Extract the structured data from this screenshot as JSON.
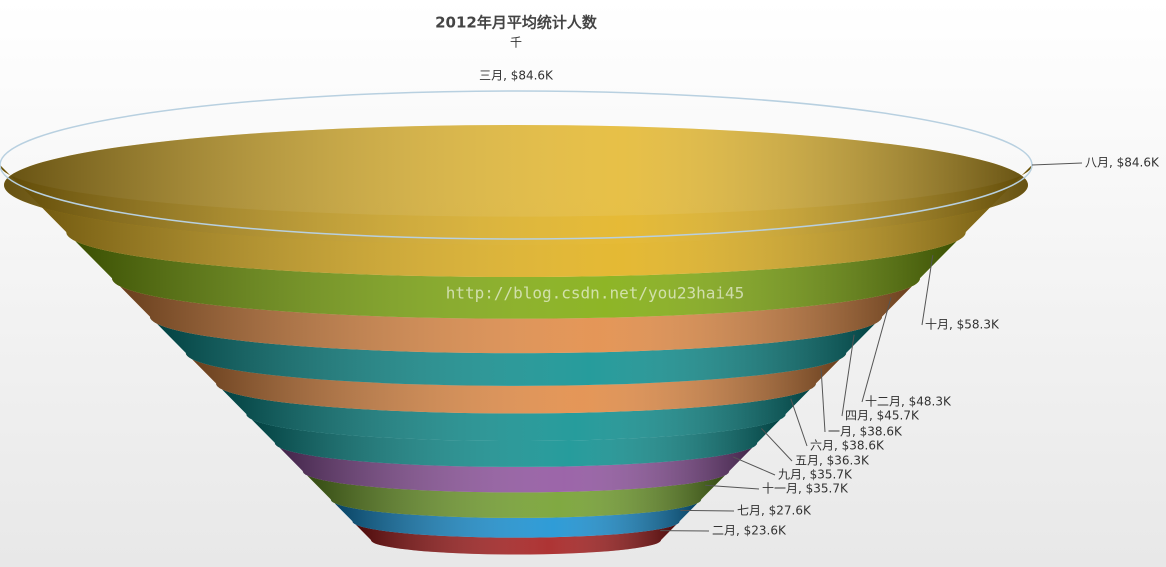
{
  "chart_data": {
    "type": "funnel",
    "title": "2012年月平均统计人数",
    "subtitle": "千",
    "watermark": "http://blog.csdn.net/you23hai45",
    "values": [
      84.6,
      84.6,
      58.3,
      48.3,
      45.7,
      38.6,
      38.6,
      36.3,
      35.7,
      35.7,
      27.6,
      23.6
    ],
    "value_labels": [
      "三月, $84.6K",
      "八月, $84.6K",
      "十月, $58.3K",
      "十二月, $48.3K",
      "四月, $45.7K",
      "一月, $38.6K",
      "六月, $38.6K",
      "五月, $36.3K",
      "九月, $35.7K",
      "十一月, $35.7K",
      "七月, $27.6K",
      "二月, $23.6K"
    ],
    "colors": [
      "#b8d0e0",
      "#e0ad10",
      "#7aa800",
      "#e0843a",
      "#008a8a",
      "#e0843a",
      "#008a8a",
      "#008a8a",
      "#8a4a9a",
      "#6a9a20",
      "#0a8ad0",
      "#a01010"
    ]
  }
}
